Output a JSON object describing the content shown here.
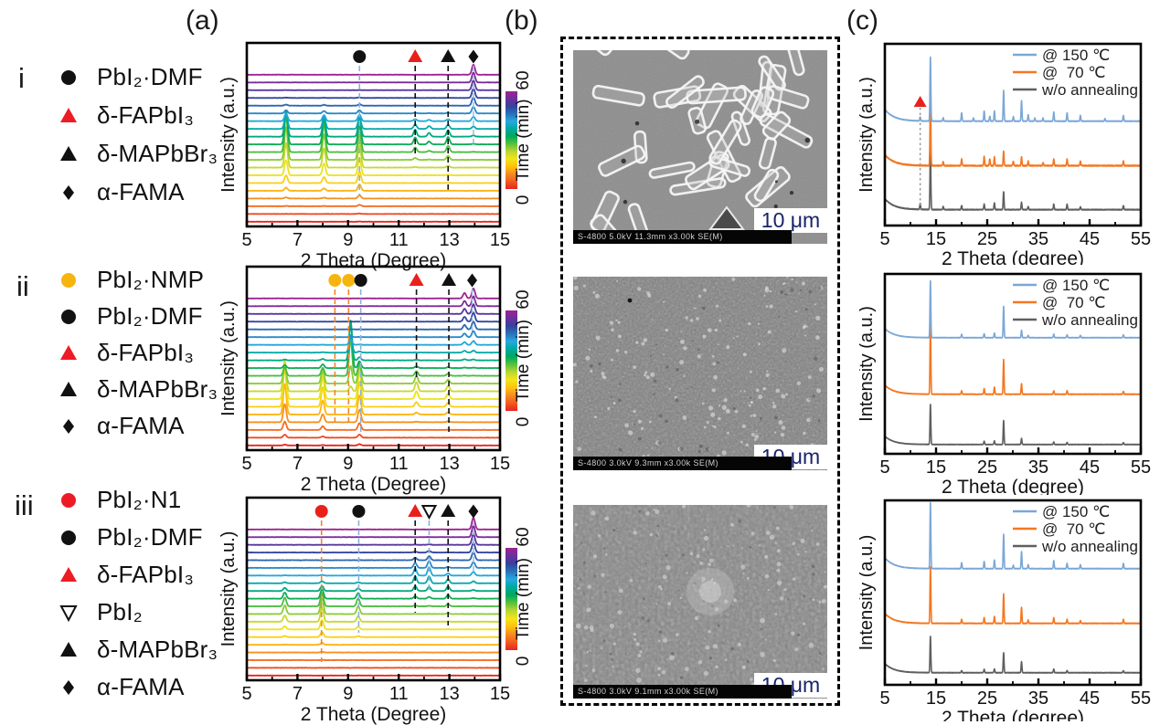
{
  "figure": {
    "panel_labels": [
      "(a)",
      "(b)",
      "(c)"
    ],
    "row_labels": [
      "i",
      "ii",
      "iii"
    ]
  },
  "colors": {
    "red": "#e8211c",
    "yellow": "#f6b40f",
    "black": "#111111",
    "blue_series": "#7ba7d7",
    "orange_series": "#f47721",
    "gray_series": "#5f5f5f",
    "dash_blue": "#8ab2de",
    "dash_orange": "#f0862b",
    "time_colormap": [
      "#e6261f",
      "#f15a22",
      "#f88c1d",
      "#fdc20f",
      "#f3e51a",
      "#bcd631",
      "#59c13b",
      "#00a95c",
      "#00a9a0",
      "#26a9df",
      "#2a71b8",
      "#33429b",
      "#6c2f9e",
      "#9c2392"
    ]
  },
  "legends_a": [
    {
      "row": "i",
      "items": [
        {
          "symbol": "circle",
          "color": "#111111",
          "label": "PbI₂·DMF"
        },
        {
          "symbol": "triangle",
          "color": "#ed1c24",
          "label": "δ-FAPbI₃"
        },
        {
          "symbol": "triangle",
          "color": "#111111",
          "label": "δ-MAPbBr₃"
        },
        {
          "symbol": "diamond",
          "color": "#111111",
          "label": "α-FAMA"
        }
      ]
    },
    {
      "row": "ii",
      "items": [
        {
          "symbol": "circle",
          "color": "#f6b40f",
          "label": "PbI₂·NMP"
        },
        {
          "symbol": "circle",
          "color": "#111111",
          "label": "PbI₂·DMF"
        },
        {
          "symbol": "triangle",
          "color": "#ed1c24",
          "label": "δ-FAPbI₃"
        },
        {
          "symbol": "triangle",
          "color": "#111111",
          "label": "δ-MAPbBr₃"
        },
        {
          "symbol": "diamond",
          "color": "#111111",
          "label": "α-FAMA"
        }
      ]
    },
    {
      "row": "iii",
      "items": [
        {
          "symbol": "circle",
          "color": "#ed1c24",
          "label": "PbI₂·N1"
        },
        {
          "symbol": "circle",
          "color": "#111111",
          "label": "PbI₂·DMF"
        },
        {
          "symbol": "triangle",
          "color": "#ed1c24",
          "label": "δ-FAPbI₃"
        },
        {
          "symbol": "triangle-down-open",
          "color": "#111111",
          "label": "PbI₂"
        },
        {
          "symbol": "triangle",
          "color": "#111111",
          "label": "δ-MAPbBr₃"
        },
        {
          "symbol": "diamond",
          "color": "#111111",
          "label": "α-FAMA"
        }
      ]
    }
  ],
  "sem": {
    "images": [
      {
        "info_bar": "S-4800 5.0kV 11.3mm x3.00k SE(M)",
        "scale_label": "10 μm"
      },
      {
        "info_bar": "S-4800 3.0kV 9.3mm x3.00k SE(M)",
        "scale_label": "10 μm"
      },
      {
        "info_bar": "S-4800 3.0kV 9.1mm x3.00k SE(M)",
        "scale_label": "10 μm"
      }
    ]
  },
  "chart_data": [
    {
      "id": "a-i",
      "type": "waterfall-line",
      "xlabel": "2 Theta (Degree)",
      "ylabel": "Intensity (a.u.)",
      "x_range": [
        5,
        15
      ],
      "x_ticks": [
        5,
        7,
        9,
        11,
        13,
        15
      ],
      "n_traces": 20,
      "colorbar": {
        "label": "Time (min)",
        "min": 0,
        "max": 60
      },
      "markers": [
        {
          "x": 9.45,
          "symbol": "circle",
          "color": "#111111",
          "line_color": "#8ab2de",
          "line_frac": 0.83
        },
        {
          "x": 11.65,
          "symbol": "triangle",
          "color": "#e8211c",
          "line_color": "#111111",
          "line_frac": 0.62
        },
        {
          "x": 12.95,
          "symbol": "triangle",
          "color": "#111111",
          "line_color": "#111111",
          "line_frac": 0.8
        },
        {
          "x": 13.95,
          "symbol": "diamond",
          "color": "#111111",
          "line_color": "#9fc1e4",
          "line_frac": 0.55
        }
      ],
      "peaks": [
        {
          "x": 6.55,
          "amp": 40,
          "env": "gauss",
          "jc": 9,
          "jw": 3.2
        },
        {
          "x": 8.05,
          "amp": 31,
          "env": "gauss",
          "jc": 9,
          "jw": 3.2
        },
        {
          "x": 9.45,
          "amp": 29,
          "env": "gauss",
          "jc": 8.5,
          "jw": 3.8
        },
        {
          "x": 11.65,
          "amp": 8,
          "env": "gauss",
          "jc": 10.5,
          "jw": 2.2
        },
        {
          "x": 12.2,
          "amp": 4,
          "env": "gauss",
          "jc": 11,
          "jw": 2.0
        },
        {
          "x": 12.95,
          "amp": 8,
          "env": "gauss",
          "jc": 10,
          "jw": 2.6
        },
        {
          "x": 13.95,
          "amp": 11,
          "env": "rise",
          "j0": 13.2,
          "jw": 1.1
        }
      ]
    },
    {
      "id": "a-ii",
      "type": "waterfall-line",
      "xlabel": "2 Theta (Degree)",
      "ylabel": "Intensity (a.u.)",
      "x_range": [
        5,
        15
      ],
      "x_ticks": [
        5,
        7,
        9,
        11,
        13,
        15
      ],
      "n_traces": 20,
      "colorbar": {
        "label": "Time (min)",
        "min": 0,
        "max": 60
      },
      "markers": [
        {
          "x": 8.48,
          "symbol": "circle",
          "color": "#f6b40f",
          "line_color": "#f0862b",
          "line_frac": 0.87
        },
        {
          "x": 9.02,
          "symbol": "circle",
          "color": "#f6b40f",
          "line_color": "#f0862b",
          "line_frac": 0.87
        },
        {
          "x": 9.5,
          "symbol": "circle",
          "color": "#111111",
          "line_color": "#8ab2de",
          "line_frac": 0.92
        },
        {
          "x": 11.7,
          "symbol": "triangle",
          "color": "#e8211c",
          "line_color": "#111111",
          "line_frac": 0.62
        },
        {
          "x": 12.98,
          "symbol": "triangle",
          "color": "#111111",
          "line_color": "#111111",
          "line_frac": 0.92
        },
        {
          "x": 13.9,
          "symbol": "diamond",
          "color": "#111111",
          "line_color": "#9fc1e4",
          "line_frac": 0.35
        }
      ],
      "peaks": [
        {
          "x": 6.5,
          "amp": 44,
          "env": "gauss",
          "jc": 5.5,
          "jw": 2.8
        },
        {
          "x": 8.0,
          "amp": 24,
          "env": "gauss",
          "jc": 6,
          "jw": 3.0
        },
        {
          "x": 9.45,
          "amp": 30,
          "env": "gauss",
          "jc": 6,
          "jw": 3.4
        },
        {
          "x": 9.1,
          "amp": 52,
          "env": "gauss",
          "jc": 10,
          "jw": 2.0
        },
        {
          "x": 11.7,
          "amp": 10,
          "env": "gauss",
          "jc": 7,
          "jw": 2.4
        },
        {
          "x": 12.95,
          "amp": 6,
          "env": "gauss",
          "jc": 6.5,
          "jw": 2.6
        },
        {
          "x": 13.6,
          "amp": 6,
          "env": "rise",
          "j0": 13,
          "jw": 1.4
        },
        {
          "x": 13.95,
          "amp": 11,
          "env": "rise",
          "j0": 13.5,
          "jw": 1.1
        }
      ]
    },
    {
      "id": "a-iii",
      "type": "waterfall-line",
      "xlabel": "2 Theta (Degree)",
      "ylabel": "Intensity (a.u.)",
      "x_range": [
        5,
        15
      ],
      "x_ticks": [
        5,
        7,
        9,
        11,
        13,
        15
      ],
      "n_traces": 20,
      "colorbar": {
        "label": "Time (min)",
        "min": 0,
        "max": 60
      },
      "markers": [
        {
          "x": 7.95,
          "symbol": "circle",
          "color": "#e8211c",
          "line_color": "#f0862b",
          "line_frac": 0.9
        },
        {
          "x": 9.42,
          "symbol": "circle",
          "color": "#111111",
          "line_color": "#8ab2de",
          "line_frac": 0.74
        },
        {
          "x": 11.65,
          "symbol": "triangle",
          "color": "#e8211c",
          "line_color": "#111111",
          "line_frac": 0.63
        },
        {
          "x": 12.2,
          "symbol": "triangle-down-open",
          "color": "#111111",
          "line_color": "#8ab2de",
          "line_frac": 0.52
        },
        {
          "x": 12.95,
          "symbol": "triangle",
          "color": "#111111",
          "line_color": "#111111",
          "line_frac": 0.7
        },
        {
          "x": 13.95,
          "symbol": "diamond",
          "color": "#111111",
          "line_color": "#9fc1e4",
          "line_frac": 0.4
        }
      ],
      "peaks": [
        {
          "x": 6.5,
          "amp": 10,
          "env": "gauss",
          "jc": 8.5,
          "jw": 2.4
        },
        {
          "x": 7.97,
          "amp": 17,
          "env": "gauss",
          "jc": 8,
          "jw": 2.8
        },
        {
          "x": 9.4,
          "amp": 9,
          "env": "gauss",
          "jc": 8.5,
          "jw": 2.4
        },
        {
          "x": 11.65,
          "amp": 8,
          "env": "gauss",
          "jc": 12.5,
          "jw": 2.4
        },
        {
          "x": 12.2,
          "amp": 9,
          "env": "gauss",
          "jc": 13,
          "jw": 2.4
        },
        {
          "x": 12.95,
          "amp": 5,
          "env": "gauss",
          "jc": 11,
          "jw": 2.4
        },
        {
          "x": 13.95,
          "amp": 13,
          "env": "rise",
          "j0": 14,
          "jw": 1.3
        }
      ]
    },
    {
      "id": "c-i",
      "type": "line",
      "xlabel": "2 Theta (degree)",
      "ylabel": "Intensity (a.u.)",
      "x_range": [
        5,
        55
      ],
      "x_ticks": [
        5,
        15,
        25,
        35,
        45,
        55
      ],
      "legend_position": "top-right",
      "annotation": {
        "symbol": "triangle",
        "color": "#e8211c",
        "x": 11.9,
        "line_color": "#999999"
      },
      "series": [
        {
          "name": "@ 150 ℃",
          "color": "#7ba7d7",
          "base": 85,
          "max_h": 70,
          "bg": 13,
          "noise": 0.6,
          "peaks": [
            [
              11.9,
              0.06
            ],
            [
              13.9,
              1.0
            ],
            [
              16.4,
              0.05
            ],
            [
              20.0,
              0.13
            ],
            [
              22.3,
              0.05
            ],
            [
              24.4,
              0.16
            ],
            [
              25.5,
              0.08
            ],
            [
              26.4,
              0.16
            ],
            [
              28.2,
              0.48
            ],
            [
              30.1,
              0.07
            ],
            [
              31.7,
              0.32
            ],
            [
              33.0,
              0.1
            ],
            [
              34.3,
              0.05
            ],
            [
              35.9,
              0.05
            ],
            [
              38.0,
              0.14
            ],
            [
              40.6,
              0.13
            ],
            [
              43.2,
              0.09
            ],
            [
              48.0,
              0.04
            ],
            [
              51.6,
              0.09
            ]
          ]
        },
        {
          "name": "@  70 ℃",
          "color": "#f47721",
          "base": 134,
          "max_h": 72,
          "bg": 12,
          "noise": 1.1,
          "peaks": [
            [
              13.9,
              1.0
            ],
            [
              16.4,
              0.06
            ],
            [
              20.0,
              0.1
            ],
            [
              24.4,
              0.14
            ],
            [
              25.5,
              0.1
            ],
            [
              26.4,
              0.13
            ],
            [
              28.2,
              0.22
            ],
            [
              30.1,
              0.07
            ],
            [
              31.7,
              0.13
            ],
            [
              33.0,
              0.07
            ],
            [
              35.9,
              0.05
            ],
            [
              38.0,
              0.1
            ],
            [
              40.6,
              0.1
            ],
            [
              43.2,
              0.07
            ],
            [
              51.6,
              0.07
            ]
          ]
        },
        {
          "name": "w/o annealing",
          "color": "#5f5f5f",
          "base": 182,
          "max_h": 66,
          "bg": 12,
          "noise": 0.8,
          "peaks": [
            [
              11.9,
              0.1
            ],
            [
              13.9,
              1.0
            ],
            [
              16.4,
              0.05
            ],
            [
              20.0,
              0.07
            ],
            [
              24.4,
              0.09
            ],
            [
              26.4,
              0.11
            ],
            [
              28.2,
              0.3
            ],
            [
              31.7,
              0.12
            ],
            [
              33.0,
              0.05
            ],
            [
              38.0,
              0.09
            ],
            [
              40.6,
              0.09
            ],
            [
              43.2,
              0.05
            ],
            [
              51.6,
              0.07
            ]
          ]
        }
      ]
    },
    {
      "id": "c-ii",
      "type": "line",
      "xlabel": "2 Theta (degree)",
      "ylabel": "Intensity (a.u.)",
      "x_range": [
        5,
        55
      ],
      "x_ticks": [
        5,
        15,
        25,
        35,
        45,
        55
      ],
      "legend_position": "top-right",
      "series": [
        {
          "name": "@ 150 ℃",
          "color": "#7ba7d7",
          "base": 70,
          "max_h": 62,
          "bg": 10,
          "noise": 0.4,
          "peaks": [
            [
              13.9,
              1.0
            ],
            [
              20.0,
              0.06
            ],
            [
              24.4,
              0.07
            ],
            [
              26.4,
              0.08
            ],
            [
              28.2,
              0.55
            ],
            [
              31.7,
              0.13
            ],
            [
              33.0,
              0.04
            ],
            [
              38.0,
              0.06
            ],
            [
              40.6,
              0.05
            ],
            [
              43.2,
              0.04
            ],
            [
              51.6,
              0.05
            ]
          ]
        },
        {
          "name": "@  70 ℃",
          "color": "#f47721",
          "base": 132,
          "max_h": 76,
          "bg": 10,
          "noise": 0.5,
          "peaks": [
            [
              13.9,
              1.0
            ],
            [
              20.0,
              0.05
            ],
            [
              24.4,
              0.08
            ],
            [
              26.4,
              0.1
            ],
            [
              28.2,
              0.5
            ],
            [
              31.7,
              0.15
            ],
            [
              38.0,
              0.05
            ],
            [
              40.6,
              0.05
            ],
            [
              51.6,
              0.04
            ]
          ]
        },
        {
          "name": "w/o annealing",
          "color": "#5f5f5f",
          "base": 187,
          "max_h": 44,
          "bg": 9,
          "noise": 0.4,
          "peaks": [
            [
              13.9,
              1.0
            ],
            [
              24.4,
              0.08
            ],
            [
              26.4,
              0.09
            ],
            [
              28.2,
              0.6
            ],
            [
              31.7,
              0.15
            ],
            [
              38.0,
              0.06
            ],
            [
              40.6,
              0.05
            ],
            [
              51.6,
              0.05
            ]
          ]
        }
      ]
    },
    {
      "id": "c-iii",
      "type": "line",
      "xlabel": "2 Theta (degree)",
      "ylabel": "Intensity (a.u.)",
      "x_range": [
        5,
        55
      ],
      "x_ticks": [
        5,
        15,
        25,
        35,
        45,
        55
      ],
      "legend_position": "top-right",
      "series": [
        {
          "name": "@ 150 ℃",
          "color": "#7ba7d7",
          "base": 75,
          "max_h": 72,
          "bg": 12,
          "noise": 0.5,
          "peaks": [
            [
              13.9,
              1.0
            ],
            [
              20.0,
              0.09
            ],
            [
              24.4,
              0.11
            ],
            [
              26.4,
              0.13
            ],
            [
              28.2,
              0.52
            ],
            [
              30.1,
              0.05
            ],
            [
              31.7,
              0.26
            ],
            [
              33.0,
              0.06
            ],
            [
              38.0,
              0.12
            ],
            [
              40.6,
              0.08
            ],
            [
              43.2,
              0.06
            ],
            [
              51.6,
              0.08
            ]
          ]
        },
        {
          "name": "@  70 ℃",
          "color": "#f47721",
          "base": 135,
          "max_h": 62,
          "bg": 11,
          "noise": 0.6,
          "peaks": [
            [
              13.9,
              1.0
            ],
            [
              20.0,
              0.07
            ],
            [
              24.4,
              0.1
            ],
            [
              26.4,
              0.12
            ],
            [
              28.2,
              0.52
            ],
            [
              31.7,
              0.28
            ],
            [
              33.0,
              0.06
            ],
            [
              38.0,
              0.1
            ],
            [
              40.6,
              0.07
            ],
            [
              43.2,
              0.05
            ],
            [
              51.6,
              0.07
            ]
          ]
        },
        {
          "name": "w/o annealing",
          "color": "#5f5f5f",
          "base": 189,
          "max_h": 40,
          "bg": 10,
          "noise": 0.5,
          "peaks": [
            [
              13.9,
              1.0
            ],
            [
              20.0,
              0.06
            ],
            [
              24.4,
              0.09
            ],
            [
              26.4,
              0.1
            ],
            [
              28.2,
              0.55
            ],
            [
              31.7,
              0.3
            ],
            [
              38.0,
              0.1
            ],
            [
              40.6,
              0.06
            ],
            [
              51.6,
              0.06
            ]
          ]
        }
      ]
    }
  ]
}
